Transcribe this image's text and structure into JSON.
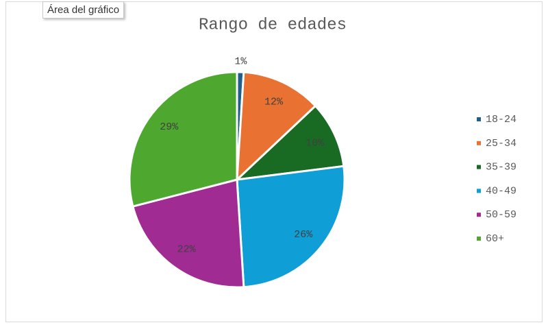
{
  "chart_data": {
    "type": "pie",
    "tooltip": "Área del gráfico",
    "title": "Rango de edades",
    "categories": [
      "18-24",
      "25-34",
      "35-39",
      "40-49",
      "50-59",
      "60+"
    ],
    "values": [
      1,
      12,
      10,
      26,
      22,
      29
    ],
    "value_labels": [
      "1%",
      "12%",
      "10%",
      "26%",
      "22%",
      "29%"
    ],
    "colors": [
      "#1f5f8b",
      "#e97132",
      "#196b24",
      "#0f9ed5",
      "#a02b93",
      "#4ea72e"
    ],
    "legend": "right"
  }
}
